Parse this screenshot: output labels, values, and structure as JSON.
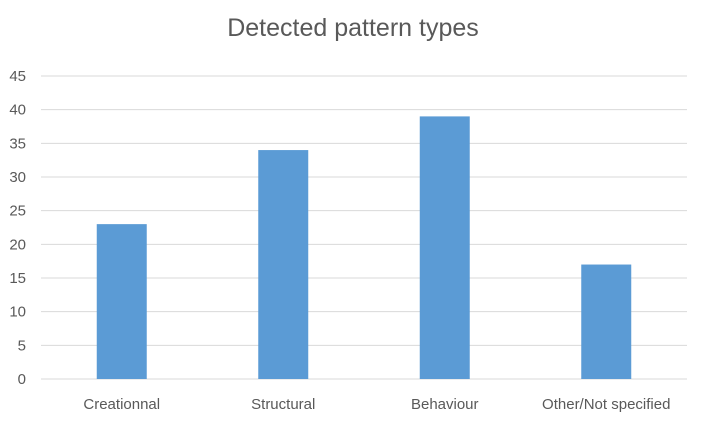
{
  "chart_data": {
    "type": "bar",
    "title": "Detected pattern types",
    "categories": [
      "Creationnal",
      "Structural",
      "Behaviour",
      "Other/Not specified"
    ],
    "values": [
      23,
      34,
      39,
      17
    ],
    "xlabel": "",
    "ylabel": "",
    "ylim": [
      0,
      45
    ],
    "yticks": [
      0,
      5,
      10,
      15,
      20,
      25,
      30,
      35,
      40,
      45
    ],
    "grid": true,
    "legend": "none",
    "bar_color": "#5b9bd5",
    "grid_color": "#d9d9d9"
  }
}
